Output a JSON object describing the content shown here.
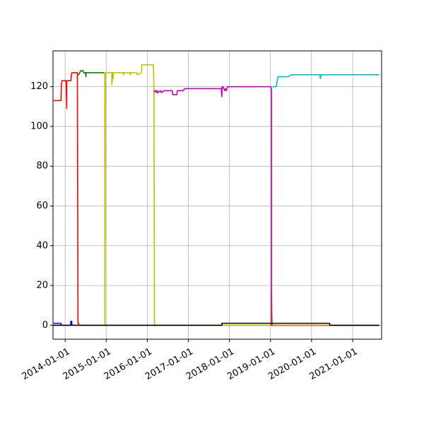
{
  "chart_data": {
    "type": "line",
    "title": "",
    "xlabel": "",
    "ylabel": "",
    "x_axis": "date",
    "xlim": [
      "2013-09-15",
      "2021-09-15"
    ],
    "ylim": [
      -7,
      138
    ],
    "grid": true,
    "legend": "none",
    "x_ticks": [
      "2014-01-01",
      "2015-01-01",
      "2016-01-01",
      "2017-01-01",
      "2018-01-01",
      "2019-01-01",
      "2020-01-01",
      "2021-01-01"
    ],
    "x_tick_labels": [
      "2014-01-01",
      "2015-01-01",
      "2016-01-01",
      "2017-01-01",
      "2018-01-01",
      "2019-01-01",
      "2020-01-01",
      "2021-01-01"
    ],
    "y_ticks": [
      0,
      20,
      40,
      60,
      80,
      100,
      120
    ],
    "y_tick_labels": [
      "0",
      "20",
      "40",
      "60",
      "80",
      "100",
      "120"
    ],
    "series": [
      {
        "color": "#0000ff",
        "x": [
          "2013-09-20",
          "2013-11-25",
          "2013-11-26",
          "2014-02-20",
          "2014-02-20",
          "2014-03-01",
          "2014-03-02"
        ],
        "y": [
          1,
          1,
          0,
          0,
          2,
          2,
          0
        ]
      },
      {
        "color": "#ff0000",
        "x": [
          "2013-09-20",
          "2013-11-25",
          "2013-11-28",
          "2013-12-05",
          "2014-01-10",
          "2014-01-15",
          "2014-01-15",
          "2014-01-25",
          "2014-01-25",
          "2014-02-20",
          "2014-03-01",
          "2014-04-20",
          "2014-04-25",
          "2014-05-01",
          "2014-05-05",
          "2021-08-25"
        ],
        "y": [
          113,
          113,
          121,
          123,
          123,
          109,
          123,
          123,
          123,
          123,
          127,
          127,
          1,
          1,
          0,
          0
        ]
      },
      {
        "color": "#008000",
        "x": [
          "2014-04-25",
          "2014-05-01",
          "2014-05-10",
          "2014-05-20",
          "2014-06-10",
          "2014-06-15",
          "2014-07-01",
          "2014-07-05",
          "2014-07-06",
          "2014-08-01",
          "2014-12-10",
          "2014-12-15"
        ],
        "y": [
          126,
          126,
          127,
          128,
          128,
          127,
          127,
          125,
          127,
          127,
          127,
          127
        ]
      },
      {
        "color": "#c0c000",
        "x": [
          "2014-12-20",
          "2014-12-20",
          "2014-12-25",
          "2015-02-15",
          "2015-02-20",
          "2015-02-20",
          "2015-03-01",
          "2015-03-05",
          "2015-03-05",
          "2015-06-01",
          "2015-06-05",
          "2015-06-06",
          "2015-08-01",
          "2015-08-05",
          "2015-08-06",
          "2015-09-10",
          "2015-10-01",
          "2015-10-05",
          "2015-11-10",
          "2015-11-15",
          "2015-12-10",
          "2015-12-15",
          "2016-02-25",
          "2016-03-01",
          "2016-03-05",
          "2016-03-10",
          "2016-03-15",
          "2018-10-01",
          "2019-01-05",
          "2019-01-10",
          "2019-01-15",
          "2019-01-20",
          "2019-01-25",
          "2021-08-25"
        ],
        "y": [
          127,
          0,
          127,
          127,
          127,
          121,
          127,
          124,
          127,
          127,
          126,
          127,
          127,
          126,
          127,
          127,
          127,
          126,
          127,
          131,
          131,
          131,
          131,
          118,
          1,
          0,
          0,
          0,
          0,
          17,
          6,
          0,
          0,
          0
        ]
      },
      {
        "color": "#c000c0",
        "x": [
          "2016-03-05",
          "2016-03-10",
          "2016-03-20",
          "2016-03-25",
          "2016-04-01",
          "2016-04-05",
          "2016-05-01",
          "2016-05-05",
          "2016-06-01",
          "2016-08-10",
          "2016-08-15",
          "2016-09-20",
          "2016-09-25",
          "2016-11-15",
          "2016-12-01",
          "2017-03-01",
          "2017-04-01",
          "2017-08-01",
          "2017-10-20",
          "2017-10-25",
          "2017-10-28",
          "2017-11-05",
          "2017-11-20",
          "2017-11-25",
          "2017-12-05",
          "2017-12-15",
          "2019-01-05",
          "2019-01-10",
          "2019-01-10",
          "2019-01-15",
          "2021-08-25"
        ],
        "y": [
          117,
          118,
          118,
          117,
          118,
          117,
          118,
          117,
          118,
          118,
          116,
          116,
          118,
          118,
          119,
          119,
          119,
          119,
          119,
          115,
          120,
          120,
          118,
          119,
          118,
          120,
          120,
          118,
          0,
          0,
          0
        ]
      },
      {
        "color": "#00c0c0",
        "x": [
          "2019-01-15",
          "2019-02-01",
          "2019-02-20",
          "2019-03-05",
          "2019-03-10",
          "2019-06-01",
          "2019-06-05",
          "2019-07-10",
          "2020-01-01",
          "2020-03-15",
          "2020-03-20",
          "2020-03-25",
          "2021-08-25"
        ],
        "y": [
          120,
          120,
          120,
          124,
          125,
          125,
          125,
          126,
          126,
          126,
          124,
          126,
          126
        ]
      },
      {
        "color": "#c08000",
        "x": [
          "2019-01-20",
          "2020-06-15"
        ],
        "y": [
          0,
          0
        ]
      },
      {
        "color": "#000000",
        "x": [
          "2013-09-20",
          "2017-10-25",
          "2017-10-26",
          "2020-06-10",
          "2020-06-11",
          "2021-08-25"
        ],
        "y": [
          0,
          0,
          1,
          1,
          0,
          0
        ]
      }
    ]
  }
}
